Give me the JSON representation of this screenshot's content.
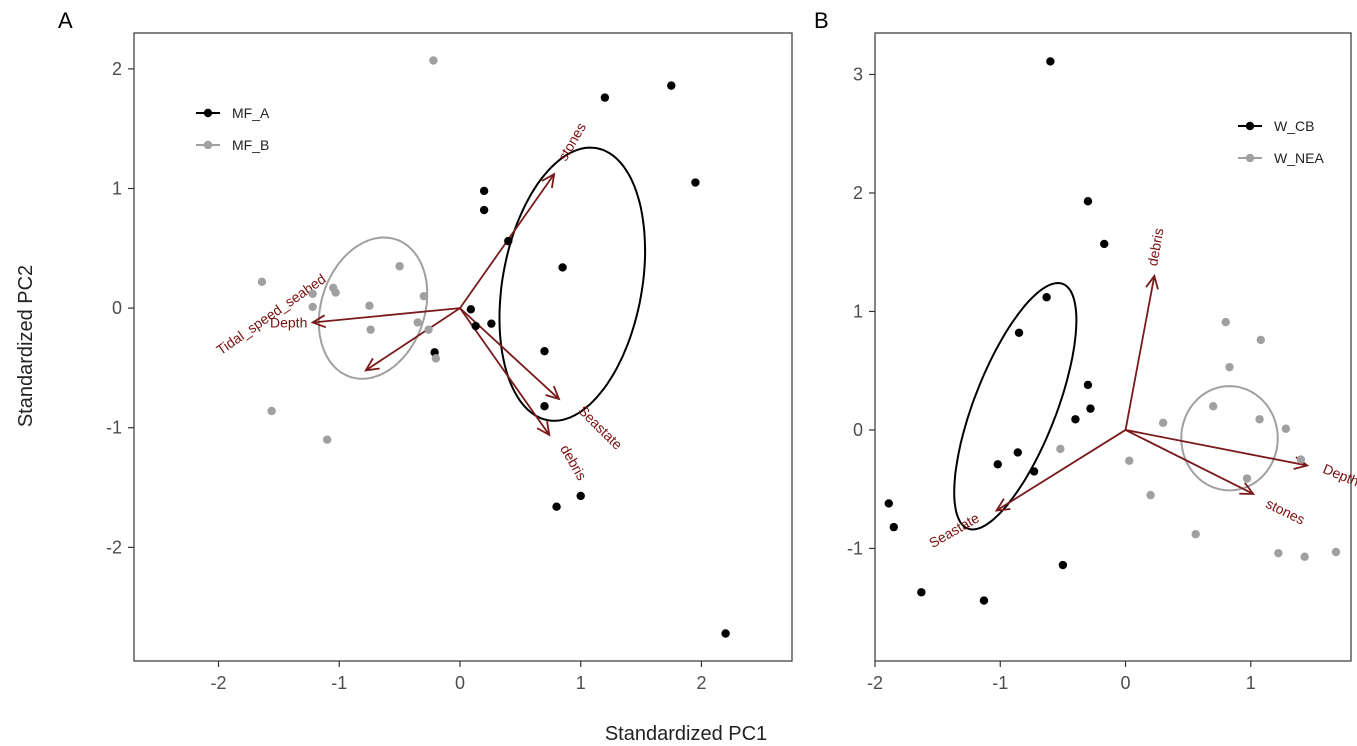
{
  "shared": {
    "xlabel": "Standardized PC1",
    "ylabel": "Standardized PC2"
  },
  "colors": {
    "groupA": "#000000",
    "groupB": "#a0a0a0",
    "arrow": "#7a1a1a"
  },
  "chart_data": [
    {
      "type": "scatter",
      "panel": "A",
      "xlim": [
        -2.7,
        2.75
      ],
      "ylim": [
        -2.95,
        2.3
      ],
      "xticks": [
        -2,
        -1,
        0,
        1,
        2
      ],
      "yticks": [
        -2,
        -1,
        0,
        1,
        2
      ],
      "grid": false,
      "legend_position": "top-left",
      "series": [
        {
          "name": "MF_A",
          "color": "#000000",
          "points": [
            [
              1.75,
              1.86
            ],
            [
              1.2,
              1.76
            ],
            [
              1.95,
              1.05
            ],
            [
              0.2,
              0.98
            ],
            [
              0.2,
              0.82
            ],
            [
              0.4,
              0.56
            ],
            [
              0.85,
              0.34
            ],
            [
              0.09,
              -0.01
            ],
            [
              0.13,
              -0.15
            ],
            [
              0.26,
              -0.13
            ],
            [
              0.7,
              -0.36
            ],
            [
              0.7,
              -0.82
            ],
            [
              0.8,
              -1.66
            ],
            [
              1.0,
              -1.57
            ],
            [
              2.2,
              -2.72
            ],
            [
              -0.21,
              -0.37
            ]
          ]
        },
        {
          "name": "MF_B",
          "color": "#a0a0a0",
          "points": [
            [
              -0.22,
              2.07
            ],
            [
              -1.64,
              0.22
            ],
            [
              -1.05,
              0.17
            ],
            [
              -1.03,
              0.13
            ],
            [
              -1.22,
              0.12
            ],
            [
              -0.5,
              0.35
            ],
            [
              -1.22,
              0.01
            ],
            [
              -0.75,
              0.02
            ],
            [
              -0.3,
              0.1
            ],
            [
              -0.74,
              -0.18
            ],
            [
              -0.35,
              -0.12
            ],
            [
              -0.26,
              -0.18
            ],
            [
              -0.2,
              -0.42
            ],
            [
              -1.56,
              -0.86
            ],
            [
              -1.1,
              -1.1
            ]
          ]
        }
      ],
      "ellipses": [
        {
          "group": "MF_A",
          "cx": 0.93,
          "cy": 0.2,
          "rx": 2.1,
          "ry": 1.05,
          "angle_deg": 80
        },
        {
          "group": "MF_B",
          "cx": -0.72,
          "cy": 0.0,
          "rx": 1.1,
          "ry": 0.78,
          "angle_deg": 72
        }
      ],
      "vectors": [
        {
          "label": "stones",
          "x": 0.78,
          "y": 1.12
        },
        {
          "label": "Depth",
          "x": -1.22,
          "y": -0.12
        },
        {
          "label": "Tidal_speed_seabed",
          "x": -0.78,
          "y": -0.52
        },
        {
          "label": "Seastate",
          "x": 0.82,
          "y": -0.76
        },
        {
          "label": "debris",
          "x": 0.74,
          "y": -1.06
        }
      ]
    },
    {
      "type": "scatter",
      "panel": "B",
      "xlim": [
        -2.0,
        1.8
      ],
      "ylim": [
        -1.95,
        3.35
      ],
      "xticks": [
        -2,
        -1,
        0,
        1
      ],
      "yticks": [
        -1,
        0,
        1,
        2,
        3
      ],
      "grid": false,
      "legend_position": "top-right",
      "series": [
        {
          "name": "W_CB",
          "color": "#000000",
          "points": [
            [
              -0.6,
              3.11
            ],
            [
              -0.3,
              1.93
            ],
            [
              -0.17,
              1.57
            ],
            [
              -0.63,
              1.12
            ],
            [
              -0.85,
              0.82
            ],
            [
              -0.3,
              0.38
            ],
            [
              -0.28,
              0.18
            ],
            [
              -0.4,
              0.09
            ],
            [
              -0.86,
              -0.19
            ],
            [
              -1.02,
              -0.29
            ],
            [
              -0.73,
              -0.35
            ],
            [
              -1.89,
              -0.62
            ],
            [
              -1.85,
              -0.82
            ],
            [
              -1.63,
              -1.37
            ],
            [
              -1.13,
              -1.44
            ],
            [
              -0.5,
              -1.14
            ]
          ]
        },
        {
          "name": "W_NEA",
          "color": "#a0a0a0",
          "points": [
            [
              0.8,
              0.91
            ],
            [
              1.08,
              0.76
            ],
            [
              0.83,
              0.53
            ],
            [
              0.7,
              0.2
            ],
            [
              1.07,
              0.09
            ],
            [
              0.3,
              0.06
            ],
            [
              1.28,
              0.01
            ],
            [
              0.03,
              -0.26
            ],
            [
              1.4,
              -0.25
            ],
            [
              0.97,
              -0.41
            ],
            [
              0.2,
              -0.55
            ],
            [
              0.56,
              -0.88
            ],
            [
              1.22,
              -1.04
            ],
            [
              1.43,
              -1.07
            ],
            [
              1.68,
              -1.03
            ],
            [
              -0.52,
              -0.16
            ]
          ]
        }
      ],
      "ellipses": [
        {
          "group": "W_CB",
          "cx": -0.88,
          "cy": 0.2,
          "rx": 2.0,
          "ry": 0.6,
          "angle_deg": 70
        },
        {
          "group": "W_NEA",
          "cx": 0.83,
          "cy": -0.07,
          "rx": 0.7,
          "ry": 0.8,
          "angle_deg": 0
        }
      ],
      "vectors": [
        {
          "label": "debris",
          "x": 0.23,
          "y": 1.3
        },
        {
          "label": "Depth",
          "x": 1.45,
          "y": -0.3
        },
        {
          "label": "stones",
          "x": 1.02,
          "y": -0.54
        },
        {
          "label": "Seastate",
          "x": -1.03,
          "y": -0.68
        }
      ]
    }
  ]
}
